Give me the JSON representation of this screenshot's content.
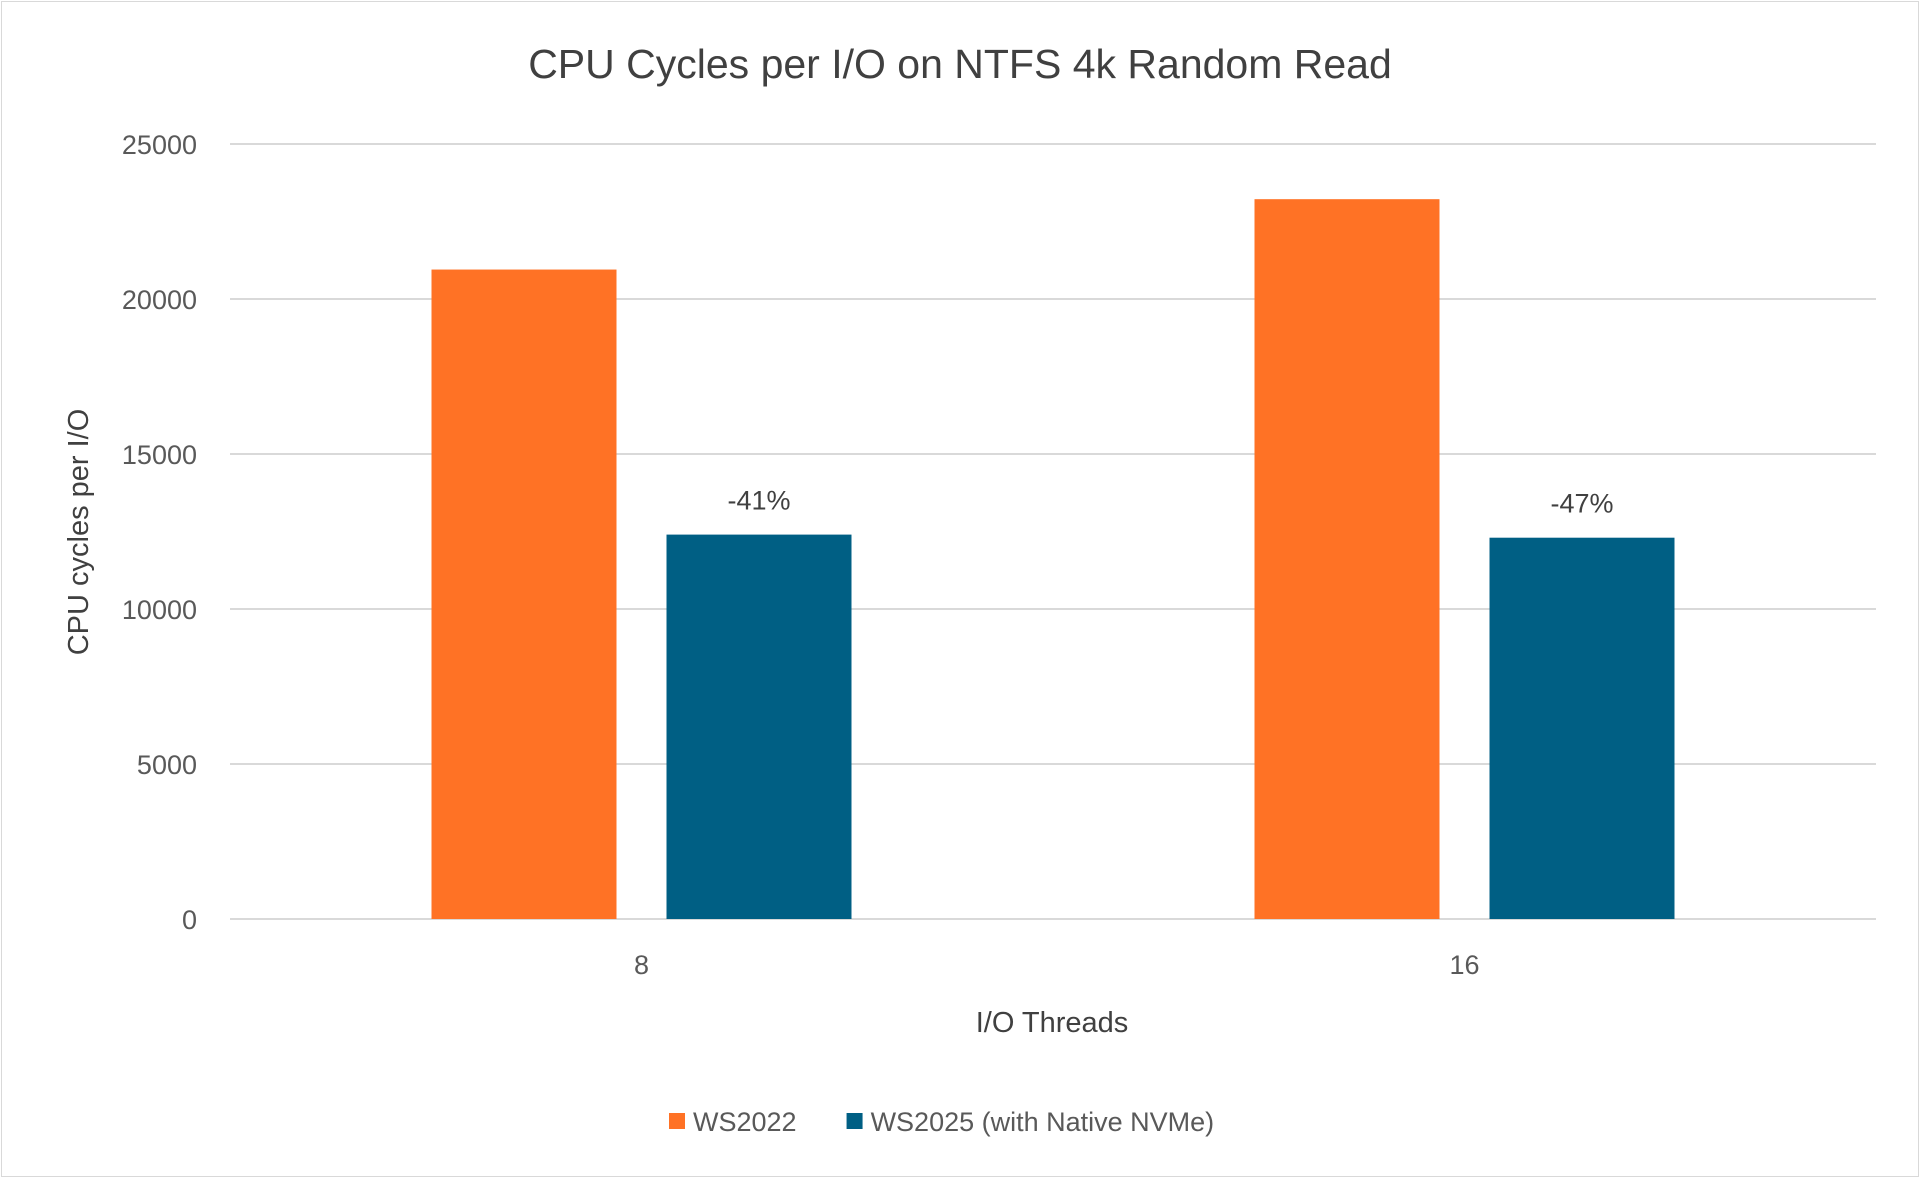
{
  "chart_data": {
    "type": "bar",
    "title": "CPU Cycles per I/O on NTFS 4k Random Read",
    "xlabel": "I/O Threads",
    "ylabel": "CPU cycles per I/O",
    "categories": [
      "8",
      "16"
    ],
    "series": [
      {
        "name": "WS2022",
        "color": "#ff7225",
        "values": [
          20950,
          23220
        ],
        "data_labels": [
          "",
          ""
        ]
      },
      {
        "name": "WS2025 (with Native NVMe)",
        "color": "#005f84",
        "values": [
          12400,
          12300
        ],
        "data_labels": [
          "-41%",
          "-47%"
        ]
      }
    ],
    "ylim": [
      0,
      25000
    ],
    "yticks": [
      "0",
      "5000",
      "10000",
      "15000",
      "20000",
      "25000"
    ],
    "grid": true,
    "legend_position": "bottom"
  }
}
